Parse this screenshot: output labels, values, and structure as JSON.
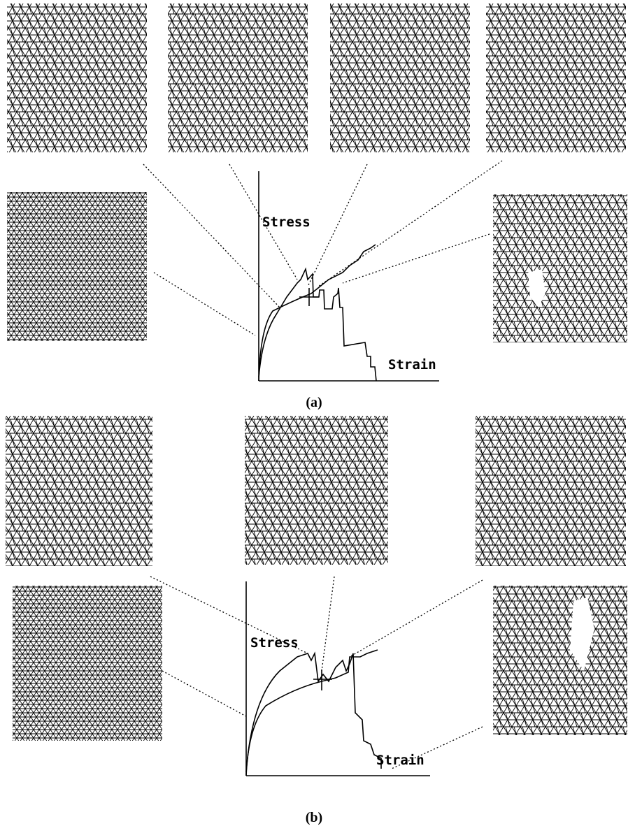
{
  "panels": [
    {
      "label": "(a)",
      "y_axis": "Stress",
      "x_axis": "Strain"
    },
    {
      "label": "(b)",
      "y_axis": "Stress",
      "x_axis": "Strain"
    }
  ]
}
